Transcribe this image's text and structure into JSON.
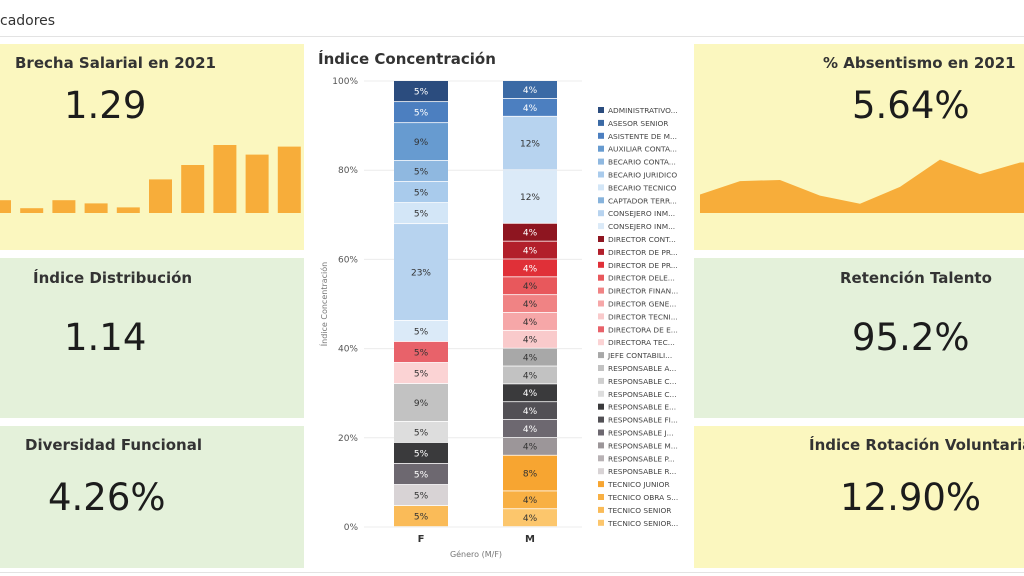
{
  "topbar": {
    "title": "cadores"
  },
  "cards": {
    "brecha": {
      "title": "Brecha Salarial en 2021",
      "value": "1.29",
      "bars": [
        0.16,
        0.06,
        0.16,
        0.12,
        0.07,
        0.42,
        0.6,
        0.85,
        0.73,
        0.83
      ]
    },
    "distribucion": {
      "title": "Índice Distribución",
      "value": "1.14"
    },
    "diversidad": {
      "title": "Diversidad Funcional",
      "value": "4.26%"
    },
    "absentismo": {
      "title": "% Absentismo en 2021",
      "value": "5.64%",
      "area": [
        0.32,
        0.55,
        0.57,
        0.3,
        0.16,
        0.45,
        0.92,
        0.67,
        0.87
      ]
    },
    "retencion": {
      "title": "Retención Talento",
      "value": "95.2%"
    },
    "rotacion": {
      "title": "Índice Rotación Voluntaria",
      "value": "12.90%"
    }
  },
  "colors": {
    "yellow_card": "#fbf7bf",
    "green_card": "#e4f1da",
    "accent": "#f7ad3a"
  },
  "chart_data": {
    "type": "bar",
    "stacked": true,
    "title": "Índice Concentración",
    "xlabel": "Género (M/F)",
    "ylabel": "Índice Concentración",
    "categories": [
      "F",
      "M"
    ],
    "ylim": [
      0,
      100
    ],
    "yticks": [
      "0%",
      "20%",
      "40%",
      "60%",
      "80%",
      "100%"
    ],
    "series": [
      {
        "name": "ADMINISTRATIVO...",
        "color": "#2b4c7e",
        "values": [
          5,
          0
        ]
      },
      {
        "name": "ASESOR SENIOR",
        "color": "#3b6aa5",
        "values": [
          0,
          4
        ]
      },
      {
        "name": "ASISTENTE DE M...",
        "color": "#4c7fc0",
        "values": [
          5,
          4
        ]
      },
      {
        "name": "AUXILIAR CONTA...",
        "color": "#679bd0",
        "values": [
          9,
          0
        ]
      },
      {
        "name": "BECARIO CONTA...",
        "color": "#8fb8e0",
        "values": [
          5,
          0
        ]
      },
      {
        "name": "BECARIO JURIDICO",
        "color": "#a9cbec",
        "values": [
          5,
          0
        ]
      },
      {
        "name": "BECARIO TECNICO",
        "color": "#d3e6f7",
        "values": [
          5,
          0
        ]
      },
      {
        "name": "CAPTADOR TERR...",
        "color": "#87b3dc",
        "values": [
          0,
          0
        ]
      },
      {
        "name": "CONSEJERO INM...",
        "color": "#b7d3ef",
        "values": [
          23,
          12
        ]
      },
      {
        "name": "CONSEJERO INM...",
        "color": "#dbeaf8",
        "values": [
          5,
          12
        ]
      },
      {
        "name": "DIRECTOR CONT...",
        "color": "#8e1520",
        "values": [
          0,
          4
        ]
      },
      {
        "name": "DIRECTOR DE PR...",
        "color": "#b21f2b",
        "values": [
          0,
          4
        ]
      },
      {
        "name": "DIRECTOR DE PR...",
        "color": "#e03038",
        "values": [
          0,
          4
        ]
      },
      {
        "name": "DIRECTOR DELE...",
        "color": "#e8585c",
        "values": [
          0,
          4
        ]
      },
      {
        "name": "DIRECTOR FINAN...",
        "color": "#f08384",
        "values": [
          0,
          4
        ]
      },
      {
        "name": "DIRECTOR GENE...",
        "color": "#f6a7a8",
        "values": [
          0,
          4
        ]
      },
      {
        "name": "DIRECTOR TECNI...",
        "color": "#f9cacb",
        "values": [
          0,
          4
        ]
      },
      {
        "name": "DIRECTORA DE E...",
        "color": "#e8626a",
        "values": [
          5,
          0
        ]
      },
      {
        "name": "DIRECTORA TEC...",
        "color": "#fbd3d4",
        "values": [
          5,
          0
        ]
      },
      {
        "name": "JEFE CONTABILI...",
        "color": "#a8a8a8",
        "values": [
          0,
          4
        ]
      },
      {
        "name": "RESPONSABLE A...",
        "color": "#c2c2c2",
        "values": [
          9,
          4
        ]
      },
      {
        "name": "RESPONSABLE C...",
        "color": "#cfcfcf",
        "values": [
          0,
          0
        ]
      },
      {
        "name": "RESPONSABLE C...",
        "color": "#dddddd",
        "values": [
          5,
          0
        ]
      },
      {
        "name": "RESPONSABLE E...",
        "color": "#3a3a3c",
        "values": [
          5,
          4
        ]
      },
      {
        "name": "RESPONSABLE FI...",
        "color": "#525055",
        "values": [
          0,
          4
        ]
      },
      {
        "name": "RESPONSABLE J...",
        "color": "#6d6870",
        "values": [
          5,
          4
        ]
      },
      {
        "name": "RESPONSABLE M...",
        "color": "#9c9699",
        "values": [
          0,
          4
        ]
      },
      {
        "name": "RESPONSABLE P...",
        "color": "#b8b2b5",
        "values": [
          0,
          0
        ]
      },
      {
        "name": "RESPONSABLE R...",
        "color": "#d8d3d5",
        "values": [
          5,
          0
        ]
      },
      {
        "name": "TECNICO JUNIOR",
        "color": "#f7a531",
        "values": [
          0,
          8
        ]
      },
      {
        "name": "TECNICO OBRA S...",
        "color": "#f8b044",
        "values": [
          0,
          4
        ]
      },
      {
        "name": "TECNICO SENIOR",
        "color": "#fabb58",
        "values": [
          5,
          0
        ]
      },
      {
        "name": "TECNICO SENIOR...",
        "color": "#fcc66c",
        "values": [
          0,
          4
        ]
      }
    ]
  }
}
